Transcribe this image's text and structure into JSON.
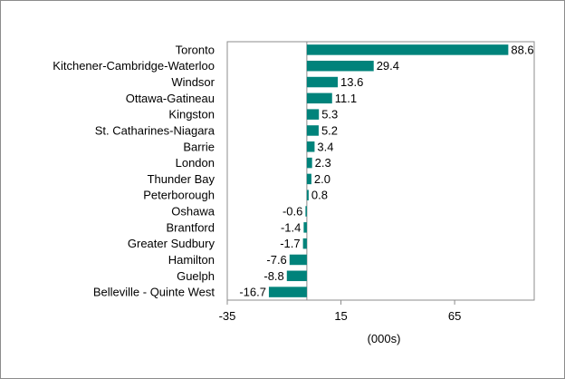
{
  "chart_data": {
    "type": "bar",
    "orientation": "horizontal",
    "title": "",
    "xlabel": "(000s)",
    "ylabel": "",
    "xlim": [
      -35,
      100
    ],
    "xticks": [
      "-35",
      "15",
      "65"
    ],
    "grid": false,
    "legend": "none",
    "bar_color": "#00837b",
    "categories": [
      "Toronto",
      "Kitchener-Cambridge-Waterloo",
      "Windsor",
      "Ottawa-Gatineau",
      "Kingston",
      "St. Catharines-Niagara",
      "Barrie",
      "London",
      "Thunder Bay",
      "Peterborough",
      "Oshawa",
      "Brantford",
      "Greater Sudbury",
      "Hamilton",
      "Guelph",
      "Belleville - Quinte West"
    ],
    "values": [
      88.6,
      29.4,
      13.6,
      11.1,
      5.3,
      5.2,
      3.4,
      2.3,
      2.0,
      0.8,
      -0.6,
      -1.4,
      -1.7,
      -7.6,
      -8.8,
      -16.7
    ],
    "value_labels": [
      "88.6",
      "29.4",
      "13.6",
      "11.1",
      "5.3",
      "5.2",
      "3.4",
      "2.3",
      "2.0",
      "0.8",
      "-0.6",
      "-1.4",
      "-1.7",
      "-7.6",
      "-8.8",
      "-16.7"
    ]
  }
}
